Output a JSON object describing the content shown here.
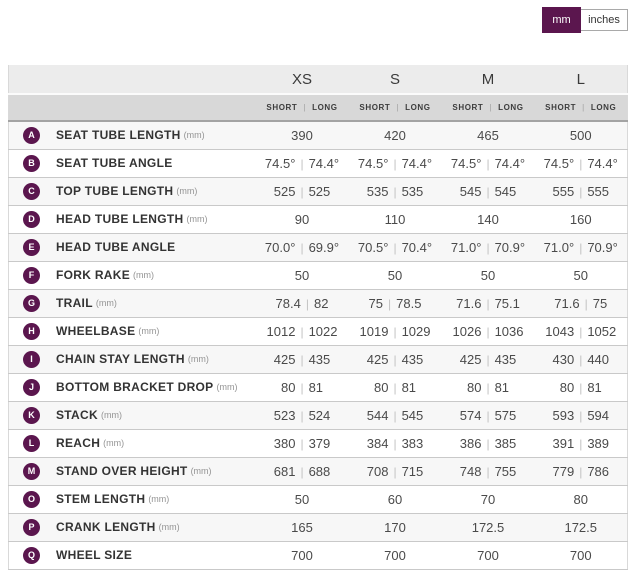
{
  "unit_toggle": {
    "mm_label": "mm",
    "inches_label": "inches",
    "selected": "mm"
  },
  "colors": {
    "accent_purple": "#5b164e",
    "size_header_bg": "#ececec",
    "variant_header_bg": "#d8d8d8",
    "row_stripe": "#f7f7f7"
  },
  "table": {
    "sizes": [
      "XS",
      "S",
      "M",
      "L"
    ],
    "variant_short": "SHORT",
    "variant_long": "LONG",
    "rows": [
      {
        "letter": "A",
        "label": "SEAT TUBE LENGTH",
        "unit": "(mm)",
        "values": [
          "390",
          "420",
          "465",
          "500"
        ]
      },
      {
        "letter": "B",
        "label": "SEAT TUBE ANGLE",
        "unit": "",
        "values": [
          [
            "74.5°",
            "74.4°"
          ],
          [
            "74.5°",
            "74.4°"
          ],
          [
            "74.5°",
            "74.4°"
          ],
          [
            "74.5°",
            "74.4°"
          ]
        ]
      },
      {
        "letter": "C",
        "label": "TOP TUBE LENGTH",
        "unit": "(mm)",
        "values": [
          [
            "525",
            "525"
          ],
          [
            "535",
            "535"
          ],
          [
            "545",
            "545"
          ],
          [
            "555",
            "555"
          ]
        ]
      },
      {
        "letter": "D",
        "label": "HEAD TUBE LENGTH",
        "unit": "(mm)",
        "values": [
          "90",
          "110",
          "140",
          "160"
        ]
      },
      {
        "letter": "E",
        "label": "HEAD TUBE ANGLE",
        "unit": "",
        "values": [
          [
            "70.0°",
            "69.9°"
          ],
          [
            "70.5°",
            "70.4°"
          ],
          [
            "71.0°",
            "70.9°"
          ],
          [
            "71.0°",
            "70.9°"
          ]
        ]
      },
      {
        "letter": "F",
        "label": "FORK RAKE",
        "unit": "(mm)",
        "values": [
          "50",
          "50",
          "50",
          "50"
        ]
      },
      {
        "letter": "G",
        "label": "TRAIL",
        "unit": "(mm)",
        "values": [
          [
            "78.4",
            "82"
          ],
          [
            "75",
            "78.5"
          ],
          [
            "71.6",
            "75.1"
          ],
          [
            "71.6",
            "75"
          ]
        ]
      },
      {
        "letter": "H",
        "label": "WHEELBASE",
        "unit": "(mm)",
        "values": [
          [
            "1012",
            "1022"
          ],
          [
            "1019",
            "1029"
          ],
          [
            "1026",
            "1036"
          ],
          [
            "1043",
            "1052"
          ]
        ]
      },
      {
        "letter": "I",
        "label": "CHAIN STAY LENGTH",
        "unit": "(mm)",
        "values": [
          [
            "425",
            "435"
          ],
          [
            "425",
            "435"
          ],
          [
            "425",
            "435"
          ],
          [
            "430",
            "440"
          ]
        ]
      },
      {
        "letter": "J",
        "label": "BOTTOM BRACKET DROP",
        "unit": "(mm)",
        "values": [
          [
            "80",
            "81"
          ],
          [
            "80",
            "81"
          ],
          [
            "80",
            "81"
          ],
          [
            "80",
            "81"
          ]
        ]
      },
      {
        "letter": "K",
        "label": "STACK",
        "unit": "(mm)",
        "values": [
          [
            "523",
            "524"
          ],
          [
            "544",
            "545"
          ],
          [
            "574",
            "575"
          ],
          [
            "593",
            "594"
          ]
        ]
      },
      {
        "letter": "L",
        "label": "REACH",
        "unit": "(mm)",
        "values": [
          [
            "380",
            "379"
          ],
          [
            "384",
            "383"
          ],
          [
            "386",
            "385"
          ],
          [
            "391",
            "389"
          ]
        ]
      },
      {
        "letter": "M",
        "label": "STAND OVER HEIGHT",
        "unit": "(mm)",
        "values": [
          [
            "681",
            "688"
          ],
          [
            "708",
            "715"
          ],
          [
            "748",
            "755"
          ],
          [
            "779",
            "786"
          ]
        ]
      },
      {
        "letter": "O",
        "label": "STEM LENGTH",
        "unit": "(mm)",
        "values": [
          "50",
          "60",
          "70",
          "80"
        ]
      },
      {
        "letter": "P",
        "label": "CRANK LENGTH",
        "unit": "(mm)",
        "values": [
          "165",
          "170",
          "172.5",
          "172.5"
        ]
      },
      {
        "letter": "Q",
        "label": "WHEEL SIZE",
        "unit": "",
        "values": [
          "700",
          "700",
          "700",
          "700"
        ]
      }
    ]
  }
}
